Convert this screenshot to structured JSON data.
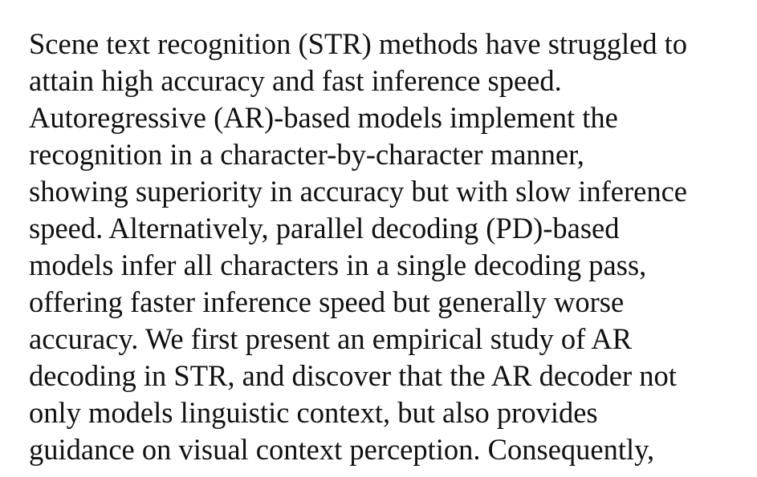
{
  "paragraph": {
    "lines": [
      "Scene text recognition (STR) methods have struggled to",
      "attain high accuracy and fast inference speed.",
      "Autoregressive (AR)-based models implement the",
      "recognition in a character-by-character manner,",
      "showing superiority in accuracy but with slow inference",
      "speed. Alternatively, parallel decoding (PD)-based",
      "models infer all characters in a single decoding pass,",
      "offering faster inference speed but generally worse",
      "accuracy. We first present an empirical study of AR",
      "decoding in STR, and discover that the AR decoder not",
      "only models linguistic context, but also provides",
      "guidance on visual context perception. Consequently,"
    ]
  }
}
